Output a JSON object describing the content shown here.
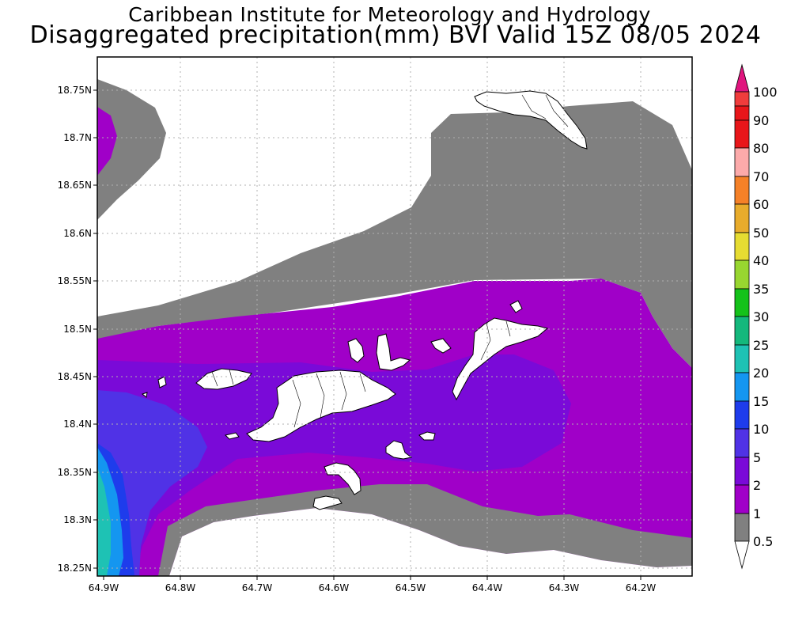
{
  "header": {
    "org": "Caribbean Institute for Meteorology and Hydrology",
    "title": "Disaggregated precipitation(mm) BVI Valid 15Z 08/05 2024"
  },
  "map": {
    "lon_labels": [
      "64.9W",
      "64.8W",
      "64.7W",
      "64.6W",
      "64.5W",
      "64.4W",
      "64.3W",
      "64.2W"
    ],
    "lat_labels": [
      "18.75N",
      "18.7N",
      "18.65N",
      "18.6N",
      "18.55N",
      "18.5N",
      "18.45N",
      "18.4N",
      "18.35N",
      "18.3N",
      "18.25N"
    ]
  },
  "legend": {
    "labels": [
      "100",
      "90",
      "80",
      "70",
      "60",
      "50",
      "40",
      "35",
      "30",
      "25",
      "20",
      "15",
      "10",
      "5",
      "2",
      "1",
      "0.5"
    ],
    "colors": {
      "gt100": "#e0157e",
      "c100": "#f03c3c",
      "c90": "#e8161a",
      "c80": "#fcaaaa",
      "c70": "#f09090",
      "c60": "#f58128",
      "c50": "#e8ac2c",
      "c40": "#e6dc32",
      "c35": "#98d630",
      "c30": "#14c21a",
      "c25": "#14b87c",
      "c20": "#1ec2b4",
      "c15": "#1496f0",
      "c10": "#1e3cec",
      "c5": "#5032e6",
      "c2": "#7a0ad8",
      "c1": "#a000c8",
      "c05": "#808080",
      "lt05": "#ffffff"
    }
  }
}
